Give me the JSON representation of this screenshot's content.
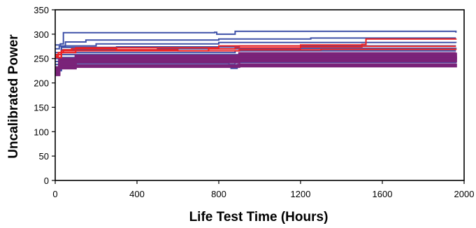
{
  "chart_data": {
    "type": "line",
    "title": "",
    "xlabel": "Life Test Time (Hours)",
    "ylabel": "Uncalibrated Power",
    "xlim": [
      0,
      2000
    ],
    "ylim": [
      0,
      350
    ],
    "xticks": [
      0,
      400,
      800,
      1200,
      1600,
      2000
    ],
    "xtick_labels": [
      "0",
      "400",
      "800",
      "1200",
      "1600",
      "2000"
    ],
    "yticks": [
      0,
      50,
      100,
      150,
      200,
      250,
      300,
      350
    ],
    "ytick_labels": [
      "0",
      "50",
      "100",
      "150",
      "200",
      "250",
      "300",
      "350"
    ],
    "grid": false,
    "legend": false,
    "colors": {
      "blue": "#3f51a8",
      "purple": "#7a2379",
      "red": "#ee2020"
    },
    "series": [
      {
        "color": "blue",
        "points": [
          [
            0,
            278
          ],
          [
            25,
            280
          ],
          [
            40,
            303
          ],
          [
            780,
            304
          ],
          [
            790,
            300
          ],
          [
            870,
            300
          ],
          [
            880,
            306
          ],
          [
            1960,
            303
          ]
        ]
      },
      {
        "color": "blue",
        "points": [
          [
            0,
            270
          ],
          [
            20,
            275
          ],
          [
            50,
            284
          ],
          [
            150,
            288
          ],
          [
            800,
            290
          ],
          [
            1250,
            292
          ],
          [
            1960,
            292
          ]
        ]
      },
      {
        "color": "blue",
        "points": [
          [
            0,
            262
          ],
          [
            30,
            276
          ],
          [
            200,
            280
          ],
          [
            800,
            283
          ],
          [
            1500,
            283
          ],
          [
            1960,
            282
          ]
        ]
      },
      {
        "color": "blue",
        "points": [
          [
            0,
            258
          ],
          [
            30,
            273
          ],
          [
            300,
            274
          ],
          [
            900,
            276
          ],
          [
            1960,
            276
          ]
        ]
      },
      {
        "color": "blue",
        "points": [
          [
            0,
            252
          ],
          [
            30,
            268
          ],
          [
            500,
            270
          ],
          [
            1200,
            271
          ],
          [
            1960,
            270
          ]
        ]
      },
      {
        "color": "blue",
        "points": [
          [
            0,
            250
          ],
          [
            30,
            262
          ],
          [
            860,
            262
          ],
          [
            880,
            266
          ],
          [
            1960,
            266
          ]
        ]
      },
      {
        "color": "blue",
        "points": [
          [
            0,
            244
          ],
          [
            30,
            258
          ],
          [
            900,
            259
          ],
          [
            1960,
            260
          ]
        ]
      },
      {
        "color": "blue",
        "points": [
          [
            0,
            238
          ],
          [
            30,
            252
          ],
          [
            900,
            254
          ],
          [
            1960,
            256
          ]
        ]
      },
      {
        "color": "blue",
        "points": [
          [
            0,
            233
          ],
          [
            30,
            244
          ],
          [
            900,
            247
          ],
          [
            1960,
            249
          ]
        ]
      },
      {
        "color": "blue",
        "points": [
          [
            0,
            228
          ],
          [
            30,
            240
          ],
          [
            850,
            238
          ],
          [
            880,
            242
          ],
          [
            1960,
            243
          ]
        ]
      },
      {
        "color": "blue",
        "points": [
          [
            0,
            225
          ],
          [
            30,
            236
          ],
          [
            860,
            230
          ],
          [
            890,
            238
          ],
          [
            1960,
            238
          ]
        ]
      },
      {
        "color": "purple",
        "points": [
          [
            0,
            220
          ],
          [
            20,
            240
          ],
          [
            100,
            248
          ],
          [
            900,
            250
          ],
          [
            1960,
            253
          ]
        ]
      },
      {
        "color": "purple",
        "points": [
          [
            0,
            218
          ],
          [
            20,
            236
          ],
          [
            100,
            244
          ],
          [
            900,
            246
          ],
          [
            1960,
            248
          ]
        ]
      },
      {
        "color": "purple",
        "points": [
          [
            0,
            222
          ],
          [
            20,
            243
          ],
          [
            100,
            250
          ],
          [
            900,
            252
          ],
          [
            1960,
            255
          ]
        ]
      },
      {
        "color": "purple",
        "points": [
          [
            0,
            226
          ],
          [
            20,
            246
          ],
          [
            100,
            252
          ],
          [
            900,
            254
          ],
          [
            1960,
            257
          ]
        ]
      },
      {
        "color": "purple",
        "points": [
          [
            0,
            224
          ],
          [
            20,
            238
          ],
          [
            100,
            242
          ],
          [
            900,
            244
          ],
          [
            1960,
            246
          ]
        ]
      },
      {
        "color": "purple",
        "points": [
          [
            0,
            230
          ],
          [
            20,
            248
          ],
          [
            100,
            255
          ],
          [
            900,
            258
          ],
          [
            1960,
            260
          ]
        ]
      },
      {
        "color": "purple",
        "points": [
          [
            0,
            217
          ],
          [
            20,
            232
          ],
          [
            100,
            236
          ],
          [
            900,
            238
          ],
          [
            1960,
            240
          ]
        ]
      },
      {
        "color": "purple",
        "points": [
          [
            0,
            228
          ],
          [
            20,
            241
          ],
          [
            100,
            247
          ],
          [
            900,
            249
          ],
          [
            1960,
            251
          ]
        ]
      },
      {
        "color": "purple",
        "points": [
          [
            0,
            216
          ],
          [
            20,
            230
          ],
          [
            100,
            233
          ],
          [
            900,
            234
          ],
          [
            1960,
            236
          ]
        ]
      },
      {
        "color": "purple",
        "points": [
          [
            0,
            232
          ],
          [
            20,
            250
          ],
          [
            100,
            256
          ],
          [
            900,
            261
          ],
          [
            1960,
            262
          ]
        ]
      },
      {
        "color": "red",
        "points": [
          [
            0,
            255
          ],
          [
            15,
            262
          ],
          [
            40,
            268
          ],
          [
            80,
            270
          ],
          [
            300,
            268
          ],
          [
            600,
            266
          ],
          [
            750,
            270
          ],
          [
            880,
            272
          ],
          [
            1200,
            274
          ],
          [
            1500,
            275
          ],
          [
            1960,
            275
          ]
        ]
      },
      {
        "color": "red",
        "points": [
          [
            0,
            258
          ],
          [
            30,
            266
          ],
          [
            100,
            272
          ],
          [
            400,
            272
          ],
          [
            800,
            276
          ],
          [
            1200,
            278
          ],
          [
            1500,
            279
          ],
          [
            1520,
            290
          ],
          [
            1960,
            291
          ]
        ]
      },
      {
        "color": "red",
        "points": [
          [
            0,
            252
          ],
          [
            30,
            262
          ],
          [
            100,
            266
          ],
          [
            500,
            266
          ],
          [
            900,
            268
          ],
          [
            1300,
            269
          ],
          [
            1960,
            270
          ]
        ]
      }
    ]
  }
}
